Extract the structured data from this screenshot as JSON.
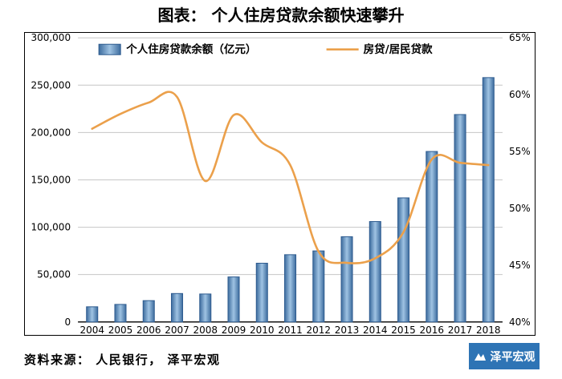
{
  "page": {
    "title": "图表：  个人住房贷款余额快速攀升",
    "source_note": "资料来源：  人民银行，  泽平宏观",
    "watermark": "泽平宏观",
    "watermark_color": "#2E74B5"
  },
  "chart_data": {
    "type": "bar",
    "subtype": "bar+line dual axis",
    "categories": [
      "2004",
      "2005",
      "2006",
      "2007",
      "2008",
      "2009",
      "2010",
      "2011",
      "2012",
      "2013",
      "2014",
      "2015",
      "2016",
      "2017",
      "2018"
    ],
    "series": [
      {
        "name": "个人住房贷款余额（亿元）",
        "type": "bar",
        "axis": "left",
        "color_gradient": [
          "#3D6C9E",
          "#9FC3E3"
        ],
        "border_color": "#2E5B8F",
        "values": [
          16000,
          18500,
          22500,
          30000,
          29500,
          47500,
          62000,
          71000,
          75000,
          90000,
          106000,
          131000,
          180000,
          219000,
          258000
        ]
      },
      {
        "name": "房贷/居民贷款",
        "type": "line",
        "axis": "right",
        "color": "#EBA04B",
        "values": [
          57.0,
          58.3,
          59.3,
          59.8,
          52.4,
          58.2,
          55.8,
          53.8,
          46.2,
          45.2,
          45.6,
          47.9,
          54.3,
          54.0,
          53.8
        ]
      }
    ],
    "left_axis": {
      "min": 0,
      "max": 300000,
      "step": 50000
    },
    "right_axis": {
      "min": 40,
      "max": 65,
      "step": 5,
      "suffix": "%"
    },
    "grid": true,
    "gridline_color": "#C6C6C6",
    "axis_line_color": "#000000",
    "legend_position": "top-inside"
  }
}
